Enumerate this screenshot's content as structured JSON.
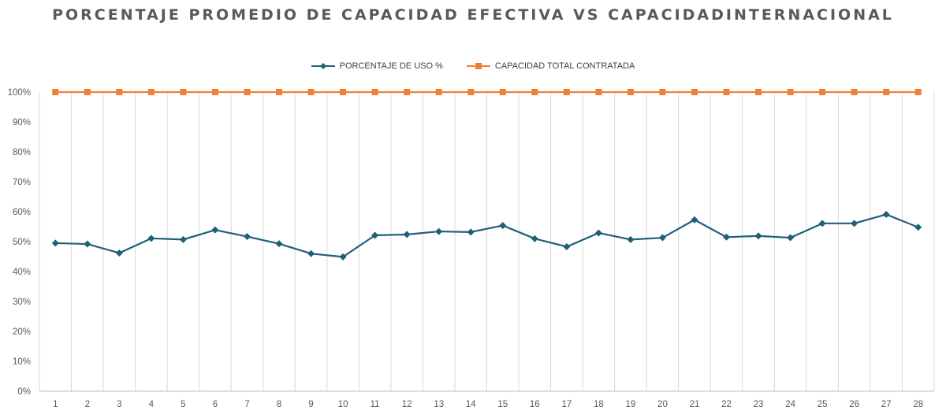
{
  "title": "PORCENTAJE PROMEDIO DE CAPACIDAD EFECTIVA VS CAPACIDADINTERNACIONAL",
  "colors": {
    "uso": "#1f5f7a",
    "capacidad": "#f07f35",
    "grid": "#d9d9d9",
    "axis": "#bfbfbf",
    "text": "#595959"
  },
  "chart_data": {
    "type": "line",
    "title": "PORCENTAJE PROMEDIO DE CAPACIDAD EFECTIVA VS CAPACIDADINTERNACIONAL",
    "xlabel": "",
    "ylabel": "",
    "categories": [
      "1",
      "2",
      "3",
      "4",
      "5",
      "6",
      "7",
      "8",
      "9",
      "10",
      "11",
      "12",
      "13",
      "14",
      "15",
      "16",
      "17",
      "18",
      "19",
      "20",
      "21",
      "22",
      "23",
      "24",
      "25",
      "26",
      "27",
      "28"
    ],
    "ylim": [
      0,
      100
    ],
    "yticks": [
      "0%",
      "10%",
      "20%",
      "30%",
      "40%",
      "50%",
      "60%",
      "70%",
      "80%",
      "90%",
      "100%"
    ],
    "grid": "vertical",
    "legend_position": "top",
    "series": [
      {
        "name": "PORCENTAJE DE USO %",
        "marker": "diamond",
        "color": "#1f5f7a",
        "values": [
          49.5,
          49.2,
          46.2,
          51.1,
          50.7,
          53.9,
          51.7,
          49.3,
          46.0,
          44.9,
          52.1,
          52.4,
          53.4,
          53.2,
          55.4,
          51.0,
          48.3,
          52.9,
          50.7,
          51.3,
          57.3,
          51.5,
          51.9,
          51.3,
          56.1,
          56.1,
          59.1,
          54.8
        ]
      },
      {
        "name": "CAPACIDAD TOTAL CONTRATADA",
        "marker": "square",
        "color": "#f07f35",
        "values": [
          100,
          100,
          100,
          100,
          100,
          100,
          100,
          100,
          100,
          100,
          100,
          100,
          100,
          100,
          100,
          100,
          100,
          100,
          100,
          100,
          100,
          100,
          100,
          100,
          100,
          100,
          100,
          100
        ]
      }
    ]
  }
}
